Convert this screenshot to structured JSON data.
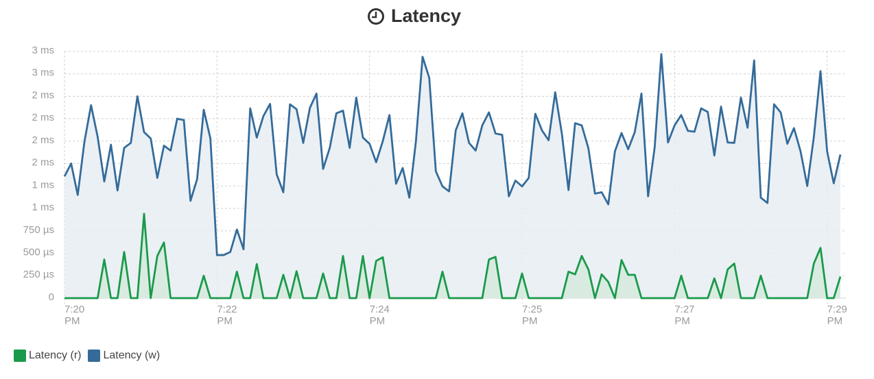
{
  "chart_data": {
    "type": "area",
    "title": "Latency",
    "xlim": [
      0,
      117
    ],
    "xticks": [
      {
        "value": 0,
        "label": "7:20 PM"
      },
      {
        "value": 23,
        "label": "7:22 PM"
      },
      {
        "value": 46,
        "label": "7:24 PM"
      },
      {
        "value": 69,
        "label": "7:25 PM"
      },
      {
        "value": 92,
        "label": "7:27 PM"
      },
      {
        "value": 115,
        "label": "7:29 PM"
      }
    ],
    "ylim": [
      0,
      2750
    ],
    "yticks": [
      0,
      {
        "value": 250,
        "label": "250 µs"
      },
      {
        "value": 500,
        "label": "500 µs"
      },
      {
        "value": 750,
        "label": "750 µs"
      },
      {
        "value": 1000,
        "label": "1 ms"
      },
      {
        "value": 1250,
        "label": "1 ms"
      },
      {
        "value": 1500,
        "label": "2 ms"
      },
      {
        "value": 1750,
        "label": "2 ms"
      },
      {
        "value": 2000,
        "label": "2 ms"
      },
      {
        "value": 2250,
        "label": "2 ms"
      },
      {
        "value": 2500,
        "label": "3 ms"
      },
      {
        "value": 2750,
        "label": "3 ms"
      }
    ],
    "grid": true,
    "legend": "bottom-left",
    "series": [
      {
        "name": "Latency (r)",
        "color": "#1a9a4a",
        "fill": "#d6eadd",
        "values": [
          0,
          0,
          0,
          0,
          0,
          0,
          430,
          0,
          0,
          515,
          0,
          0,
          940,
          0,
          470,
          620,
          0,
          0,
          0,
          0,
          0,
          250,
          0,
          0,
          0,
          0,
          295,
          0,
          0,
          380,
          0,
          0,
          0,
          260,
          0,
          300,
          0,
          0,
          0,
          275,
          0,
          0,
          470,
          0,
          0,
          470,
          0,
          415,
          455,
          0,
          0,
          0,
          0,
          0,
          0,
          0,
          0,
          295,
          0,
          0,
          0,
          0,
          0,
          0,
          430,
          460,
          0,
          0,
          0,
          275,
          0,
          0,
          0,
          0,
          0,
          0,
          295,
          265,
          470,
          320,
          0,
          265,
          180,
          0,
          425,
          260,
          260,
          0,
          0,
          0,
          0,
          0,
          0,
          250,
          0,
          0,
          0,
          0,
          220,
          0,
          320,
          385,
          0,
          0,
          0,
          250,
          0,
          0,
          0,
          0,
          0,
          0,
          0,
          385,
          560,
          0,
          0,
          240
        ]
      },
      {
        "name": "Latency (w)",
        "color": "#346b99",
        "fill": "#e8edf3",
        "values": [
          1357,
          1500,
          1150,
          1740,
          2150,
          1800,
          1300,
          1710,
          1200,
          1675,
          1730,
          2250,
          1850,
          1780,
          1340,
          1700,
          1645,
          2000,
          1985,
          1085,
          1325,
          2100,
          1780,
          480,
          480,
          515,
          765,
          545,
          2115,
          1790,
          2030,
          2165,
          1380,
          1180,
          2160,
          2105,
          1730,
          2120,
          2280,
          1440,
          1675,
          2060,
          2090,
          1675,
          2235,
          1790,
          1720,
          1515,
          1750,
          2040,
          1275,
          1450,
          1120,
          1750,
          2690,
          2455,
          1415,
          1245,
          1190,
          1870,
          2060,
          1730,
          1645,
          1925,
          2070,
          1835,
          1820,
          1135,
          1310,
          1245,
          1340,
          2055,
          1870,
          1760,
          2295,
          1835,
          1205,
          1950,
          1925,
          1670,
          1165,
          1180,
          1045,
          1635,
          1840,
          1660,
          1850,
          2280,
          1135,
          1680,
          2720,
          1735,
          1925,
          2040,
          1865,
          1855,
          2115,
          2075,
          1590,
          2135,
          1735,
          1730,
          2235,
          1900,
          2650,
          1120,
          1060,
          2160,
          2070,
          1720,
          1895,
          1635,
          1250,
          1795,
          2530,
          1635,
          1280,
          1600
        ]
      }
    ]
  }
}
